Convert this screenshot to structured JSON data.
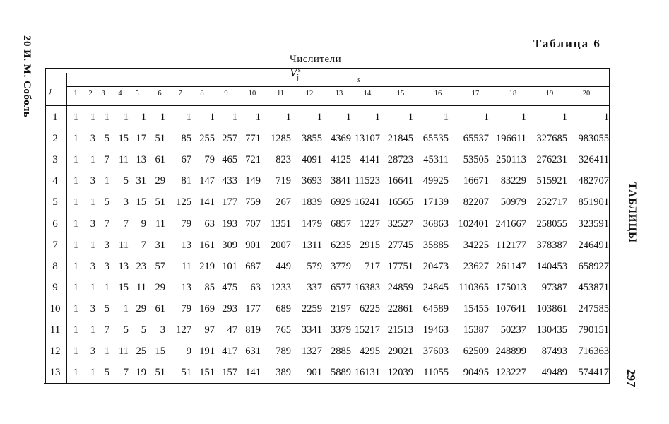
{
  "page": {
    "running_head_left": "20 И. М. Соболь",
    "running_head_right": "ТАБЛИЦЫ",
    "page_number": "297",
    "table_label": "Таблица 6",
    "caption_text": "Числители",
    "caption_symbol": "V",
    "caption_sup": "s",
    "caption_sub": "j"
  },
  "table": {
    "row_header": "j",
    "col_group_header": "s",
    "columns": [
      "1",
      "2",
      "3",
      "4",
      "5",
      "6",
      "7",
      "8",
      "9",
      "10",
      "11",
      "12",
      "13",
      "14",
      "15",
      "16",
      "17",
      "18",
      "19",
      "20"
    ],
    "rows": [
      {
        "j": "1",
        "values": [
          "1",
          "1",
          "1",
          "1",
          "1",
          "1",
          "1",
          "1",
          "1",
          "1",
          "1",
          "1",
          "1",
          "1",
          "1",
          "1",
          "1",
          "1",
          "1",
          "1"
        ]
      },
      {
        "j": "2",
        "values": [
          "1",
          "3",
          "5",
          "15",
          "17",
          "51",
          "85",
          "255",
          "257",
          "771",
          "1285",
          "3855",
          "4369",
          "13107",
          "21845",
          "65535",
          "65537",
          "196611",
          "327685",
          "983055"
        ]
      },
      {
        "j": "3",
        "values": [
          "1",
          "1",
          "7",
          "11",
          "13",
          "61",
          "67",
          "79",
          "465",
          "721",
          "823",
          "4091",
          "4125",
          "4141",
          "28723",
          "45311",
          "53505",
          "250113",
          "276231",
          "326411"
        ]
      },
      {
        "j": "4",
        "values": [
          "1",
          "3",
          "1",
          "5",
          "31",
          "29",
          "81",
          "147",
          "433",
          "149",
          "719",
          "3693",
          "3841",
          "11523",
          "16641",
          "49925",
          "16671",
          "83229",
          "515921",
          "482707"
        ]
      },
      {
        "j": "5",
        "values": [
          "1",
          "1",
          "5",
          "3",
          "15",
          "51",
          "125",
          "141",
          "177",
          "759",
          "267",
          "1839",
          "6929",
          "16241",
          "16565",
          "17139",
          "82207",
          "50979",
          "252717",
          "851901"
        ]
      },
      {
        "j": "6",
        "values": [
          "1",
          "3",
          "7",
          "7",
          "9",
          "11",
          "79",
          "63",
          "193",
          "707",
          "1351",
          "1479",
          "6857",
          "1227",
          "32527",
          "36863",
          "102401",
          "241667",
          "258055",
          "323591"
        ]
      },
      {
        "j": "7",
        "values": [
          "1",
          "1",
          "3",
          "11",
          "7",
          "31",
          "13",
          "161",
          "309",
          "901",
          "2007",
          "1311",
          "6235",
          "2915",
          "27745",
          "35885",
          "34225",
          "112177",
          "378387",
          "246491"
        ]
      },
      {
        "j": "8",
        "values": [
          "1",
          "3",
          "3",
          "13",
          "23",
          "57",
          "11",
          "219",
          "101",
          "687",
          "449",
          "579",
          "3779",
          "717",
          "17751",
          "20473",
          "23627",
          "261147",
          "140453",
          "658927"
        ]
      },
      {
        "j": "9",
        "values": [
          "1",
          "1",
          "1",
          "15",
          "11",
          "29",
          "13",
          "85",
          "475",
          "63",
          "1233",
          "337",
          "6577",
          "16383",
          "24859",
          "24845",
          "110365",
          "175013",
          "97387",
          "453871"
        ]
      },
      {
        "j": "10",
        "values": [
          "1",
          "3",
          "5",
          "1",
          "29",
          "61",
          "79",
          "169",
          "293",
          "177",
          "689",
          "2259",
          "2197",
          "6225",
          "22861",
          "64589",
          "15455",
          "107641",
          "103861",
          "247585"
        ]
      },
      {
        "j": "11",
        "values": [
          "1",
          "1",
          "7",
          "5",
          "5",
          "3",
          "127",
          "97",
          "47",
          "819",
          "765",
          "3341",
          "3379",
          "15217",
          "21513",
          "19463",
          "15387",
          "50237",
          "130435",
          "790151"
        ]
      },
      {
        "j": "12",
        "values": [
          "1",
          "3",
          "1",
          "11",
          "25",
          "15",
          "9",
          "191",
          "417",
          "631",
          "789",
          "1327",
          "2885",
          "4295",
          "29021",
          "37603",
          "62509",
          "248899",
          "87493",
          "716363"
        ]
      },
      {
        "j": "13",
        "values": [
          "1",
          "1",
          "5",
          "7",
          "19",
          "51",
          "51",
          "151",
          "157",
          "141",
          "389",
          "901",
          "5889",
          "16131",
          "12039",
          "11055",
          "90495",
          "123227",
          "49489",
          "574417"
        ]
      }
    ]
  }
}
